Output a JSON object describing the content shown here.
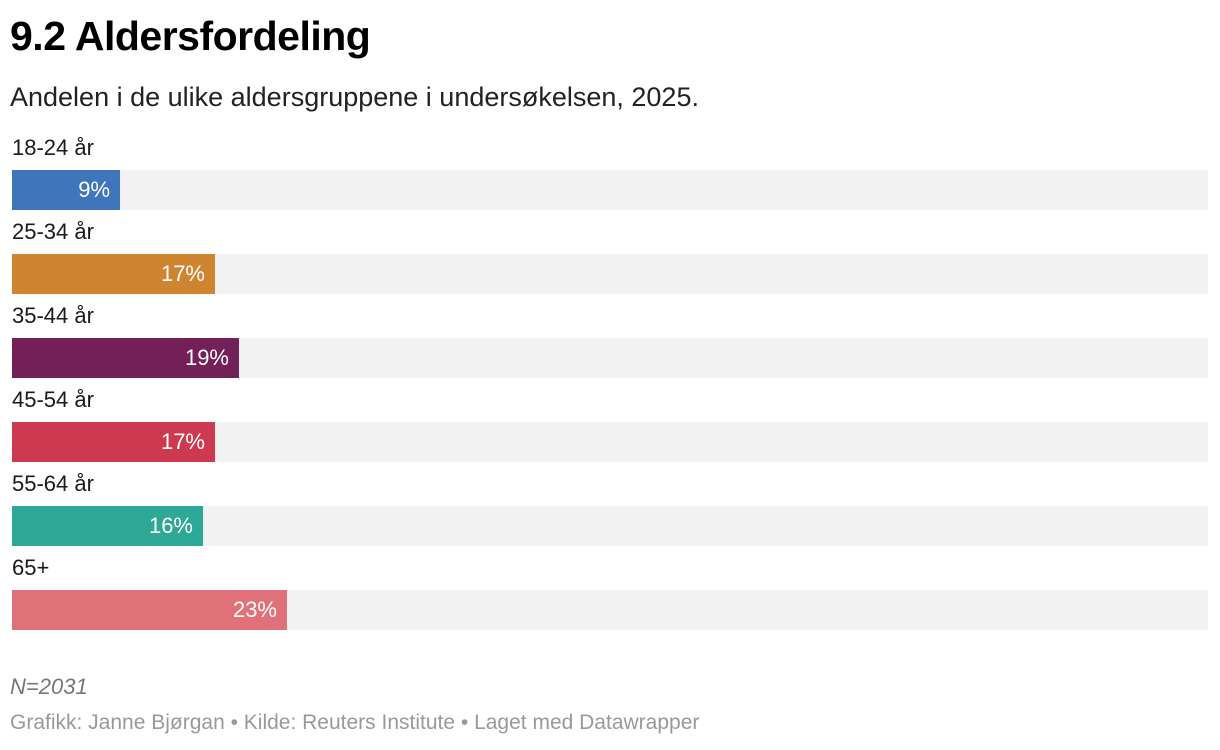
{
  "chart_data": {
    "type": "bar",
    "orientation": "horizontal",
    "title": "9.2 Aldersfordeling",
    "subtitle": "Andelen i de ulike aldersgruppene i undersøkelsen, 2025.",
    "categories": [
      "18-24 år",
      "25-34 år",
      "35-44 år",
      "45-54 år",
      "55-64 år",
      "65+"
    ],
    "values": [
      9,
      17,
      19,
      17,
      16,
      23
    ],
    "value_labels": [
      "9%",
      "17%",
      "19%",
      "17%",
      "16%",
      "23%"
    ],
    "colors": [
      "#3f76bb",
      "#cf8530",
      "#731f58",
      "#cd3a50",
      "#2ea896",
      "#e07178"
    ],
    "xlim": [
      0,
      100
    ],
    "unit": "%",
    "grid": false,
    "legend": "none",
    "note": "N=2031",
    "credits": "Grafikk: Janne Bjørgan • Kilde: Reuters Institute • Laget med Datawrapper"
  }
}
